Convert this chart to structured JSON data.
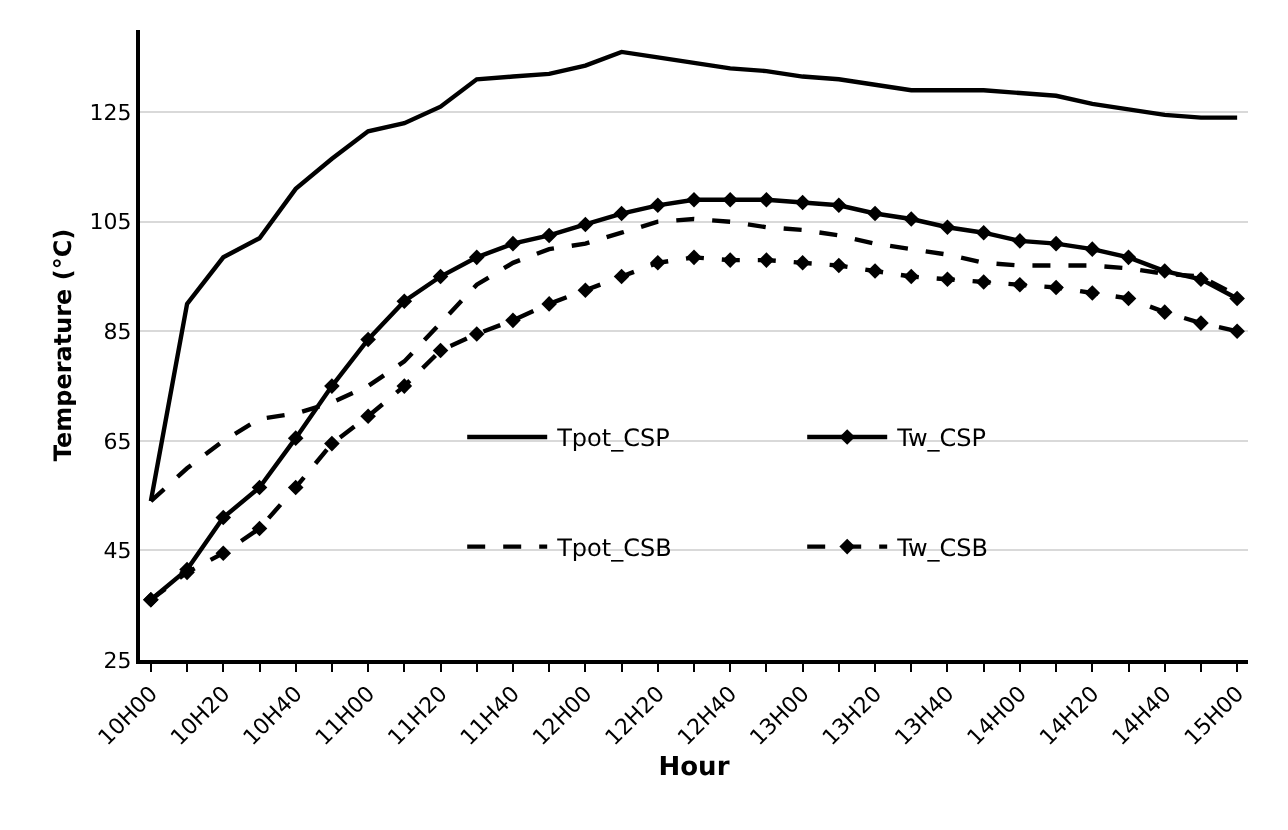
{
  "chart_data": {
    "type": "line",
    "xlabel": "Hour",
    "ylabel": "Temperature (°C)",
    "categories": [
      "10H00",
      null,
      "10H20",
      null,
      "10H40",
      null,
      "11H00",
      null,
      "11H20",
      null,
      "11H40",
      null,
      "12H00",
      null,
      "12H20",
      null,
      "12H40",
      null,
      "13H00",
      null,
      "13H20",
      null,
      "13H40",
      null,
      "14H00",
      null,
      "14H20",
      null,
      "14H40",
      null,
      "15H00"
    ],
    "ylim": [
      25,
      140
    ],
    "yticks": [
      25,
      45,
      65,
      85,
      105,
      125
    ],
    "grid": "y",
    "legend": "bottom right",
    "series": [
      {
        "name": "Tpot_CSP",
        "color": "#000000",
        "marker": "none",
        "line_style": "solid",
        "values": [
          54,
          90,
          98.5,
          102,
          111,
          116.5,
          121.5,
          123,
          126,
          131,
          131.5,
          132,
          133.5,
          136,
          135,
          134,
          133,
          132.5,
          131.5,
          131,
          130,
          129,
          129,
          129,
          128.5,
          128,
          126.5,
          125.5,
          124.5,
          124,
          124
        ]
      },
      {
        "name": "Tw_CSP",
        "color": "#000000",
        "marker": "diamond",
        "line_style": "solid",
        "values": [
          36,
          41.5,
          51,
          56.5,
          65.5,
          75,
          83.5,
          90.5,
          95,
          98.5,
          101,
          102.5,
          104.5,
          106.5,
          108,
          109,
          109,
          109,
          108.5,
          108,
          106.5,
          105.5,
          104,
          103,
          101.5,
          101,
          100,
          98.5,
          96,
          94.5,
          91
        ]
      },
      {
        "name": "Tpot_CSB",
        "color": "#000000",
        "marker": "none",
        "line_style": "dashed",
        "values": [
          54,
          60,
          65,
          69,
          70,
          72,
          75,
          79.5,
          86.5,
          93.5,
          97.5,
          100,
          101,
          103,
          105,
          105.5,
          105,
          104,
          103.5,
          102.5,
          101,
          100,
          99,
          97.5,
          97,
          97,
          97,
          96.5,
          95.5,
          95,
          91.5
        ]
      },
      {
        "name": "Tw_CSB",
        "color": "#000000",
        "marker": "diamond",
        "line_style": "dashed",
        "values": [
          36,
          41,
          44.5,
          49,
          56.5,
          64.5,
          69.5,
          75,
          81.5,
          84.5,
          87,
          90,
          92.5,
          95,
          97.5,
          98.5,
          98,
          98,
          97.5,
          97,
          96,
          95,
          94.5,
          94,
          93.5,
          93,
          92,
          91,
          88.5,
          86.5,
          85
        ]
      }
    ]
  }
}
